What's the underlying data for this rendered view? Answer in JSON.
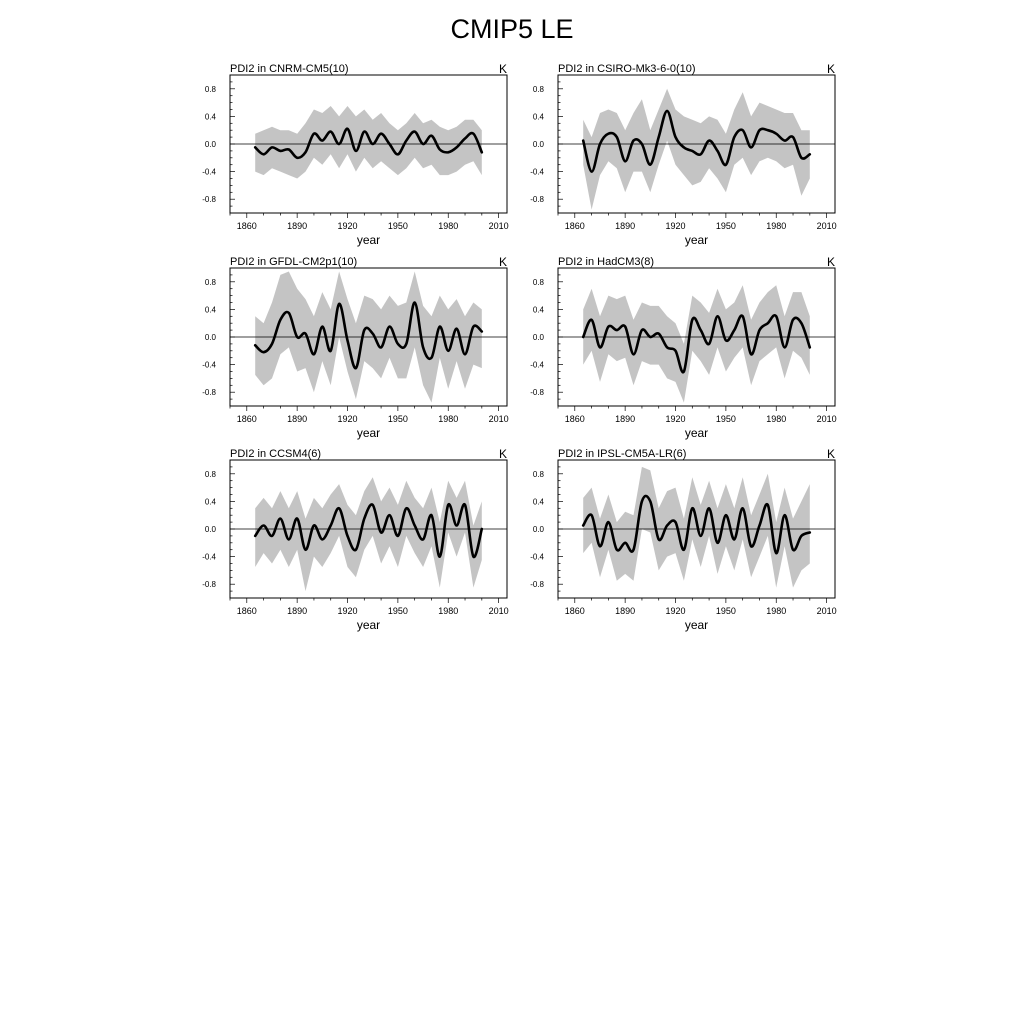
{
  "title": "CMIP5 LE",
  "chart_data": [
    {
      "type": "line",
      "title": "PDI2 in CNRM-CM5(10)",
      "units": "K",
      "xlabel": "year",
      "ylabel": "",
      "xlim": [
        1850,
        2015
      ],
      "ylim": [
        -1.0,
        1.0
      ],
      "xticks": [
        1860,
        1890,
        1920,
        1950,
        1980,
        2010
      ],
      "yticks": [
        -0.8,
        -0.4,
        0.0,
        0.4,
        0.8
      ],
      "ytick_labels": [
        "-0.8",
        "-0.4",
        "0.0",
        "0.4",
        "0.8"
      ],
      "reference_line": 0.0,
      "colors": {
        "mean": "#000000",
        "spread": "#c4c4c4"
      },
      "x": [
        1865,
        1870,
        1875,
        1880,
        1885,
        1890,
        1895,
        1900,
        1905,
        1910,
        1915,
        1920,
        1925,
        1930,
        1935,
        1940,
        1945,
        1950,
        1955,
        1960,
        1965,
        1970,
        1975,
        1980,
        1985,
        1990,
        1995,
        2000
      ],
      "series": [
        {
          "role": "ensemble mean",
          "values": [
            -0.05,
            -0.15,
            -0.05,
            -0.1,
            -0.08,
            -0.2,
            -0.12,
            0.15,
            0.05,
            0.18,
            0.0,
            0.22,
            -0.1,
            0.18,
            0.0,
            0.15,
            0.0,
            -0.15,
            0.05,
            0.18,
            0.0,
            0.12,
            -0.08,
            -0.12,
            -0.05,
            0.08,
            0.15,
            -0.12
          ]
        },
        {
          "role": "spread upper",
          "values": [
            0.15,
            0.2,
            0.25,
            0.2,
            0.2,
            0.15,
            0.3,
            0.5,
            0.45,
            0.55,
            0.4,
            0.55,
            0.4,
            0.5,
            0.35,
            0.45,
            0.3,
            0.2,
            0.3,
            0.45,
            0.3,
            0.35,
            0.25,
            0.2,
            0.25,
            0.35,
            0.35,
            0.2
          ]
        },
        {
          "role": "spread lower",
          "values": [
            -0.4,
            -0.45,
            -0.35,
            -0.4,
            -0.45,
            -0.5,
            -0.4,
            -0.2,
            -0.3,
            -0.15,
            -0.35,
            -0.15,
            -0.4,
            -0.2,
            -0.35,
            -0.25,
            -0.35,
            -0.45,
            -0.35,
            -0.2,
            -0.35,
            -0.3,
            -0.45,
            -0.45,
            -0.4,
            -0.3,
            -0.25,
            -0.45
          ]
        }
      ]
    },
    {
      "type": "line",
      "title": "PDI2 in CSIRO-Mk3-6-0(10)",
      "units": "K",
      "xlabel": "year",
      "ylabel": "",
      "xlim": [
        1850,
        2015
      ],
      "ylim": [
        -1.0,
        1.0
      ],
      "xticks": [
        1860,
        1890,
        1920,
        1950,
        1980,
        2010
      ],
      "yticks": [
        -0.8,
        -0.4,
        0.0,
        0.4,
        0.8
      ],
      "ytick_labels": [
        "-0.8",
        "-0.4",
        "0.0",
        "0.4",
        "0.8"
      ],
      "reference_line": 0.0,
      "colors": {
        "mean": "#000000",
        "spread": "#c4c4c4"
      },
      "x": [
        1865,
        1870,
        1875,
        1880,
        1885,
        1890,
        1895,
        1900,
        1905,
        1910,
        1915,
        1920,
        1925,
        1930,
        1935,
        1940,
        1945,
        1950,
        1955,
        1960,
        1965,
        1970,
        1975,
        1980,
        1985,
        1990,
        1995,
        2000
      ],
      "series": [
        {
          "role": "ensemble mean",
          "values": [
            0.05,
            -0.4,
            0.0,
            0.15,
            0.1,
            -0.25,
            0.05,
            0.0,
            -0.3,
            0.1,
            0.48,
            0.1,
            -0.05,
            -0.1,
            -0.15,
            0.05,
            -0.1,
            -0.3,
            0.1,
            0.2,
            -0.05,
            0.2,
            0.2,
            0.15,
            0.05,
            0.1,
            -0.2,
            -0.15
          ]
        },
        {
          "role": "spread upper",
          "values": [
            0.35,
            0.1,
            0.45,
            0.5,
            0.45,
            0.2,
            0.45,
            0.65,
            0.2,
            0.5,
            0.8,
            0.5,
            0.4,
            0.35,
            0.3,
            0.4,
            0.35,
            0.15,
            0.5,
            0.75,
            0.4,
            0.6,
            0.55,
            0.5,
            0.45,
            0.45,
            0.2,
            0.2
          ]
        },
        {
          "role": "spread lower",
          "values": [
            -0.3,
            -0.95,
            -0.45,
            -0.25,
            -0.35,
            -0.7,
            -0.4,
            -0.4,
            -0.7,
            -0.3,
            0.05,
            -0.3,
            -0.45,
            -0.6,
            -0.55,
            -0.35,
            -0.5,
            -0.7,
            -0.3,
            -0.2,
            -0.45,
            -0.25,
            -0.2,
            -0.25,
            -0.35,
            -0.3,
            -0.75,
            -0.5
          ]
        }
      ]
    },
    {
      "type": "line",
      "title": "PDI2 in GFDL-CM2p1(10)",
      "units": "K",
      "xlabel": "year",
      "ylabel": "",
      "xlim": [
        1850,
        2015
      ],
      "ylim": [
        -1.0,
        1.0
      ],
      "xticks": [
        1860,
        1890,
        1920,
        1950,
        1980,
        2010
      ],
      "yticks": [
        -0.8,
        -0.4,
        0.0,
        0.4,
        0.8
      ],
      "ytick_labels": [
        "-0.8",
        "-0.4",
        "0.0",
        "0.4",
        "0.8"
      ],
      "reference_line": 0.0,
      "colors": {
        "mean": "#000000",
        "spread": "#c4c4c4"
      },
      "x": [
        1865,
        1870,
        1875,
        1880,
        1885,
        1890,
        1895,
        1900,
        1905,
        1910,
        1915,
        1920,
        1925,
        1930,
        1935,
        1940,
        1945,
        1950,
        1955,
        1960,
        1965,
        1970,
        1975,
        1980,
        1985,
        1990,
        1995,
        2000
      ],
      "series": [
        {
          "role": "ensemble mean",
          "values": [
            -0.12,
            -0.22,
            -0.1,
            0.25,
            0.35,
            0.0,
            0.05,
            -0.25,
            0.15,
            -0.2,
            0.48,
            -0.05,
            -0.45,
            0.1,
            0.05,
            -0.15,
            0.15,
            -0.1,
            -0.1,
            0.5,
            -0.15,
            -0.3,
            0.15,
            -0.2,
            0.12,
            -0.25,
            0.15,
            0.08
          ]
        },
        {
          "role": "spread upper",
          "values": [
            0.3,
            0.2,
            0.5,
            0.9,
            0.95,
            0.7,
            0.55,
            0.3,
            0.65,
            0.4,
            0.95,
            0.55,
            0.2,
            0.6,
            0.55,
            0.4,
            0.6,
            0.45,
            0.5,
            0.95,
            0.45,
            0.3,
            0.6,
            0.4,
            0.55,
            0.3,
            0.5,
            0.4
          ]
        },
        {
          "role": "spread lower",
          "values": [
            -0.55,
            -0.7,
            -0.6,
            -0.25,
            -0.15,
            -0.5,
            -0.45,
            -0.8,
            -0.35,
            -0.7,
            0.0,
            -0.5,
            -0.9,
            -0.35,
            -0.45,
            -0.6,
            -0.3,
            -0.6,
            -0.6,
            -0.15,
            -0.7,
            -0.95,
            -0.3,
            -0.75,
            -0.35,
            -0.75,
            -0.4,
            -0.45
          ]
        }
      ]
    },
    {
      "type": "line",
      "title": "PDI2 in HadCM3(8)",
      "units": "K",
      "xlabel": "year",
      "ylabel": "",
      "xlim": [
        1850,
        2015
      ],
      "ylim": [
        -1.0,
        1.0
      ],
      "xticks": [
        1860,
        1890,
        1920,
        1950,
        1980,
        2010
      ],
      "yticks": [
        -0.8,
        -0.4,
        0.0,
        0.4,
        0.8
      ],
      "ytick_labels": [
        "-0.8",
        "-0.4",
        "0.0",
        "0.4",
        "0.8"
      ],
      "reference_line": 0.0,
      "colors": {
        "mean": "#000000",
        "spread": "#c4c4c4"
      },
      "x": [
        1865,
        1870,
        1875,
        1880,
        1885,
        1890,
        1895,
        1900,
        1905,
        1910,
        1915,
        1920,
        1925,
        1930,
        1935,
        1940,
        1945,
        1950,
        1955,
        1960,
        1965,
        1970,
        1975,
        1980,
        1985,
        1990,
        1995,
        2000
      ],
      "series": [
        {
          "role": "ensemble mean",
          "values": [
            0.0,
            0.25,
            -0.15,
            0.15,
            0.1,
            0.15,
            -0.25,
            0.1,
            0.0,
            0.05,
            -0.15,
            -0.2,
            -0.5,
            0.25,
            0.1,
            -0.1,
            0.3,
            -0.05,
            0.1,
            0.3,
            -0.25,
            0.1,
            0.2,
            0.3,
            -0.15,
            0.25,
            0.2,
            -0.15
          ]
        },
        {
          "role": "spread upper",
          "values": [
            0.4,
            0.7,
            0.3,
            0.6,
            0.55,
            0.6,
            0.25,
            0.5,
            0.45,
            0.45,
            0.3,
            0.2,
            -0.1,
            0.6,
            0.5,
            0.35,
            0.7,
            0.4,
            0.5,
            0.75,
            0.25,
            0.5,
            0.65,
            0.75,
            0.3,
            0.65,
            0.65,
            0.3
          ]
        },
        {
          "role": "spread lower",
          "values": [
            -0.4,
            -0.2,
            -0.65,
            -0.25,
            -0.35,
            -0.3,
            -0.7,
            -0.35,
            -0.4,
            -0.4,
            -0.6,
            -0.65,
            -0.95,
            -0.2,
            -0.35,
            -0.55,
            -0.15,
            -0.5,
            -0.3,
            -0.15,
            -0.7,
            -0.35,
            -0.25,
            -0.15,
            -0.6,
            -0.2,
            -0.3,
            -0.55
          ]
        }
      ]
    },
    {
      "type": "line",
      "title": "PDI2 in CCSM4(6)",
      "units": "K",
      "xlabel": "year",
      "ylabel": "",
      "xlim": [
        1850,
        2015
      ],
      "ylim": [
        -1.0,
        1.0
      ],
      "xticks": [
        1860,
        1890,
        1920,
        1950,
        1980,
        2010
      ],
      "yticks": [
        -0.8,
        -0.4,
        0.0,
        0.4,
        0.8
      ],
      "ytick_labels": [
        "-0.8",
        "-0.4",
        "0.0",
        "0.4",
        "0.8"
      ],
      "reference_line": 0.0,
      "colors": {
        "mean": "#000000",
        "spread": "#c4c4c4"
      },
      "x": [
        1865,
        1870,
        1875,
        1880,
        1885,
        1890,
        1895,
        1900,
        1905,
        1910,
        1915,
        1920,
        1925,
        1930,
        1935,
        1940,
        1945,
        1950,
        1955,
        1960,
        1965,
        1970,
        1975,
        1980,
        1985,
        1990,
        1995,
        2000
      ],
      "series": [
        {
          "role": "ensemble mean",
          "values": [
            -0.1,
            0.05,
            -0.1,
            0.15,
            -0.15,
            0.15,
            -0.3,
            0.05,
            -0.15,
            0.05,
            0.3,
            -0.1,
            -0.3,
            0.15,
            0.35,
            -0.05,
            0.2,
            -0.1,
            0.3,
            0.05,
            -0.15,
            0.2,
            -0.4,
            0.35,
            0.05,
            0.35,
            -0.4,
            0.0
          ]
        },
        {
          "role": "spread upper",
          "values": [
            0.3,
            0.45,
            0.3,
            0.55,
            0.3,
            0.55,
            0.15,
            0.45,
            0.3,
            0.5,
            0.65,
            0.35,
            0.2,
            0.55,
            0.75,
            0.4,
            0.6,
            0.35,
            0.7,
            0.45,
            0.3,
            0.6,
            0.1,
            0.7,
            0.45,
            0.7,
            0.05,
            0.4
          ]
        },
        {
          "role": "spread lower",
          "values": [
            -0.55,
            -0.35,
            -0.5,
            -0.3,
            -0.55,
            -0.3,
            -0.9,
            -0.4,
            -0.55,
            -0.35,
            -0.1,
            -0.55,
            -0.7,
            -0.3,
            -0.1,
            -0.5,
            -0.25,
            -0.55,
            -0.1,
            -0.35,
            -0.55,
            -0.25,
            -0.85,
            -0.05,
            -0.4,
            -0.05,
            -0.85,
            -0.45
          ]
        }
      ]
    },
    {
      "type": "line",
      "title": "PDI2 in IPSL-CM5A-LR(6)",
      "units": "K",
      "xlabel": "year",
      "ylabel": "",
      "xlim": [
        1850,
        2015
      ],
      "ylim": [
        -1.0,
        1.0
      ],
      "xticks": [
        1860,
        1890,
        1920,
        1950,
        1980,
        2010
      ],
      "yticks": [
        -0.8,
        -0.4,
        0.0,
        0.4,
        0.8
      ],
      "ytick_labels": [
        "-0.8",
        "-0.4",
        "0.0",
        "0.4",
        "0.8"
      ],
      "reference_line": 0.0,
      "colors": {
        "mean": "#000000",
        "spread": "#c4c4c4"
      },
      "x": [
        1865,
        1870,
        1875,
        1880,
        1885,
        1890,
        1895,
        1900,
        1905,
        1910,
        1915,
        1920,
        1925,
        1930,
        1935,
        1940,
        1945,
        1950,
        1955,
        1960,
        1965,
        1970,
        1975,
        1980,
        1985,
        1990,
        1995,
        2000
      ],
      "series": [
        {
          "role": "ensemble mean",
          "values": [
            0.05,
            0.2,
            -0.25,
            0.1,
            -0.3,
            -0.2,
            -0.3,
            0.4,
            0.4,
            -0.15,
            0.05,
            0.1,
            -0.3,
            0.3,
            -0.1,
            0.3,
            -0.2,
            0.2,
            -0.15,
            0.3,
            -0.25,
            0.05,
            0.35,
            -0.35,
            0.2,
            -0.3,
            -0.1,
            -0.05
          ]
        },
        {
          "role": "spread upper",
          "values": [
            0.45,
            0.6,
            0.15,
            0.5,
            0.1,
            0.25,
            0.2,
            0.9,
            0.85,
            0.3,
            0.55,
            0.6,
            0.15,
            0.75,
            0.35,
            0.7,
            0.3,
            0.65,
            0.3,
            0.75,
            0.2,
            0.5,
            0.8,
            0.1,
            0.6,
            0.15,
            0.4,
            0.65
          ]
        },
        {
          "role": "spread lower",
          "values": [
            -0.35,
            -0.2,
            -0.7,
            -0.3,
            -0.75,
            -0.65,
            -0.75,
            0.0,
            -0.05,
            -0.6,
            -0.4,
            -0.35,
            -0.75,
            -0.15,
            -0.55,
            -0.1,
            -0.65,
            -0.25,
            -0.6,
            -0.15,
            -0.7,
            -0.4,
            -0.1,
            -0.85,
            -0.25,
            -0.85,
            -0.6,
            -0.5
          ]
        }
      ]
    }
  ]
}
